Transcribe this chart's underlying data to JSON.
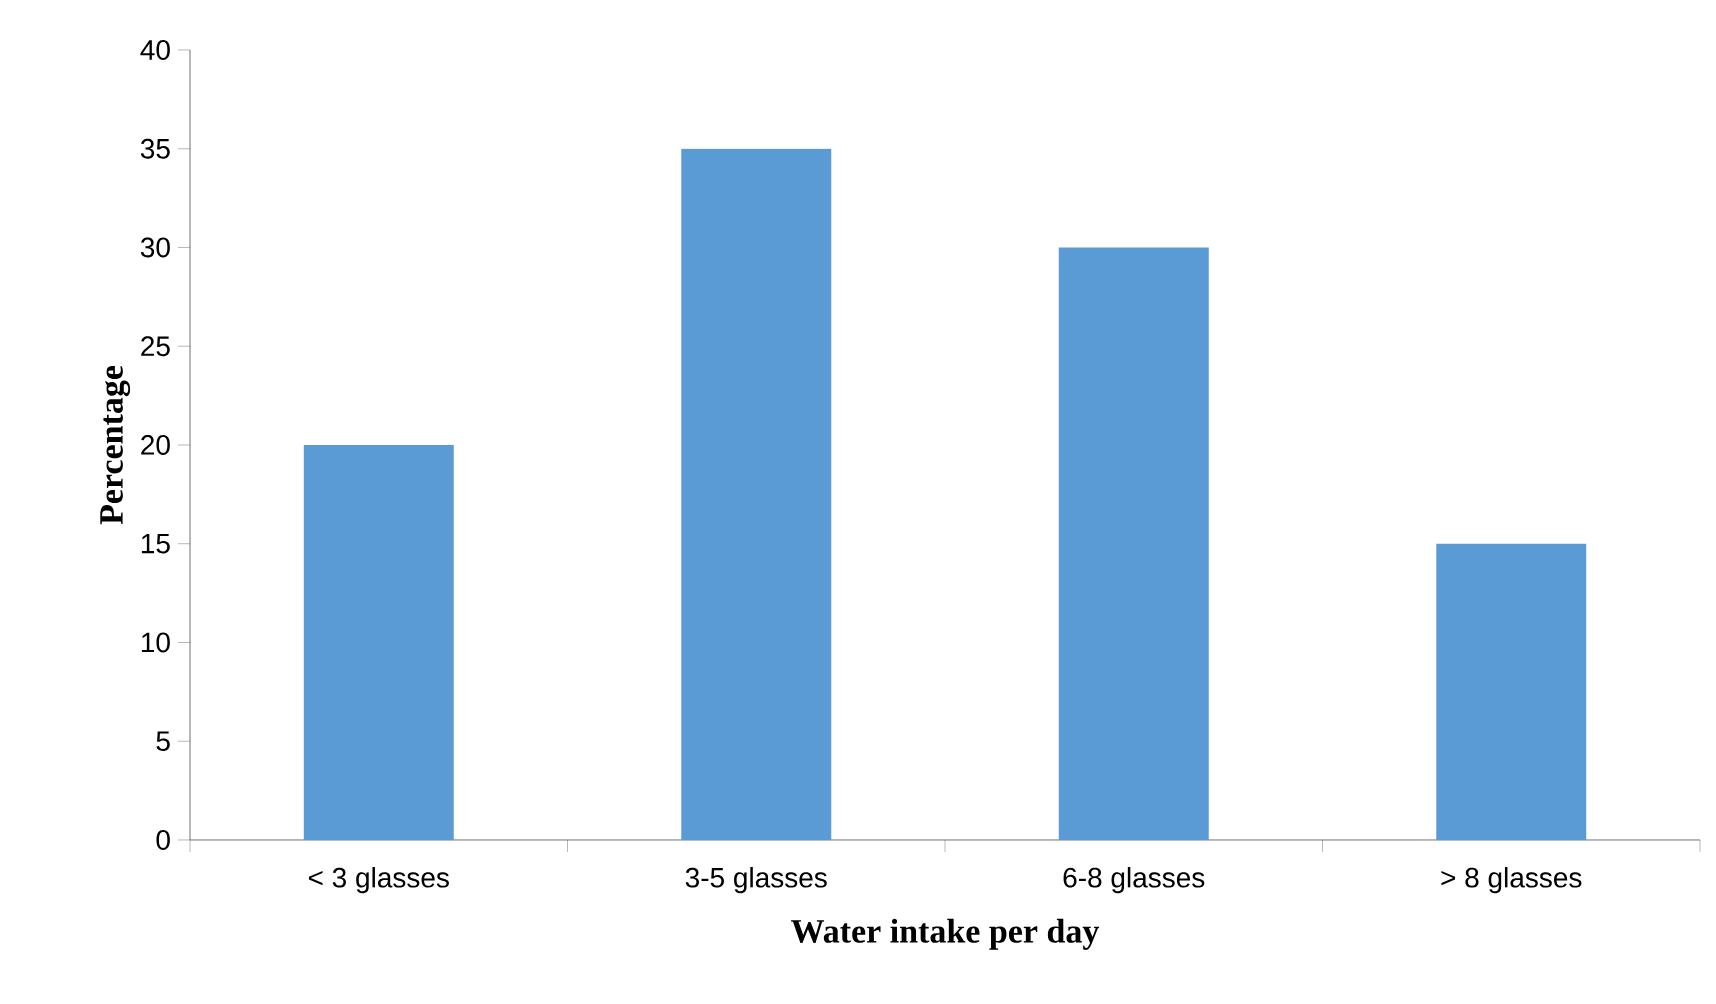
{
  "chart_data": {
    "type": "bar",
    "xlabel": "Water intake per day",
    "ylabel": "Percentage",
    "categories": [
      "< 3 glasses",
      "3-5 glasses",
      "6-8 glasses",
      "> 8 glasses"
    ],
    "values": [
      20,
      35,
      30,
      15
    ],
    "color": "#5b9bd5",
    "ylim": [
      0,
      40
    ],
    "yticks": [
      0,
      5,
      10,
      15,
      20,
      25,
      30,
      35,
      40
    ]
  }
}
